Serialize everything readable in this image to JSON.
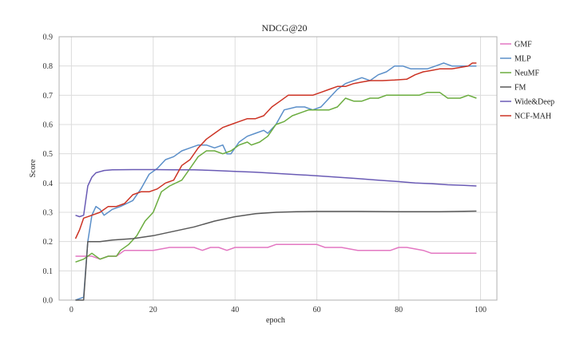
{
  "chart_data": {
    "type": "line",
    "title": "NDCG@20",
    "xlabel": "epoch",
    "ylabel": "Score",
    "xlim": [
      -3,
      104
    ],
    "ylim": [
      0.0,
      0.9
    ],
    "xticks": [
      0,
      20,
      40,
      60,
      80,
      100
    ],
    "yticks": [
      0.0,
      0.1,
      0.2,
      0.3,
      0.4,
      0.5,
      0.6,
      0.7,
      0.8,
      0.9
    ],
    "grid": true,
    "legend_position": "right",
    "series": [
      {
        "name": "GMF",
        "color": "#e377c2",
        "points": [
          [
            1,
            0.15
          ],
          [
            5,
            0.15
          ],
          [
            7,
            0.14
          ],
          [
            9,
            0.15
          ],
          [
            11,
            0.15
          ],
          [
            13,
            0.17
          ],
          [
            20,
            0.17
          ],
          [
            24,
            0.18
          ],
          [
            30,
            0.18
          ],
          [
            32,
            0.17
          ],
          [
            34,
            0.18
          ],
          [
            36,
            0.18
          ],
          [
            38,
            0.17
          ],
          [
            40,
            0.18
          ],
          [
            44,
            0.18
          ],
          [
            48,
            0.18
          ],
          [
            50,
            0.19
          ],
          [
            56,
            0.19
          ],
          [
            60,
            0.19
          ],
          [
            62,
            0.18
          ],
          [
            66,
            0.18
          ],
          [
            70,
            0.17
          ],
          [
            78,
            0.17
          ],
          [
            80,
            0.18
          ],
          [
            82,
            0.18
          ],
          [
            86,
            0.17
          ],
          [
            88,
            0.16
          ],
          [
            99,
            0.16
          ]
        ]
      },
      {
        "name": "MLP",
        "color": "#5b8fc9",
        "points": [
          [
            1,
            0.0
          ],
          [
            3,
            0.01
          ],
          [
            4,
            0.2
          ],
          [
            5,
            0.29
          ],
          [
            6,
            0.32
          ],
          [
            7,
            0.31
          ],
          [
            8,
            0.29
          ],
          [
            9,
            0.3
          ],
          [
            10,
            0.31
          ],
          [
            12,
            0.32
          ],
          [
            15,
            0.34
          ],
          [
            17,
            0.38
          ],
          [
            19,
            0.43
          ],
          [
            21,
            0.45
          ],
          [
            23,
            0.48
          ],
          [
            25,
            0.49
          ],
          [
            27,
            0.51
          ],
          [
            29,
            0.52
          ],
          [
            31,
            0.53
          ],
          [
            33,
            0.53
          ],
          [
            35,
            0.52
          ],
          [
            37,
            0.53
          ],
          [
            38,
            0.5
          ],
          [
            39,
            0.5
          ],
          [
            41,
            0.54
          ],
          [
            43,
            0.56
          ],
          [
            45,
            0.57
          ],
          [
            47,
            0.58
          ],
          [
            48,
            0.57
          ],
          [
            50,
            0.6
          ],
          [
            52,
            0.65
          ],
          [
            55,
            0.66
          ],
          [
            57,
            0.66
          ],
          [
            59,
            0.65
          ],
          [
            61,
            0.66
          ],
          [
            63,
            0.69
          ],
          [
            65,
            0.72
          ],
          [
            67,
            0.74
          ],
          [
            69,
            0.75
          ],
          [
            71,
            0.76
          ],
          [
            73,
            0.75
          ],
          [
            75,
            0.77
          ],
          [
            77,
            0.78
          ],
          [
            79,
            0.8
          ],
          [
            81,
            0.8
          ],
          [
            83,
            0.79
          ],
          [
            85,
            0.79
          ],
          [
            87,
            0.79
          ],
          [
            89,
            0.8
          ],
          [
            91,
            0.81
          ],
          [
            93,
            0.8
          ],
          [
            95,
            0.8
          ],
          [
            97,
            0.8
          ],
          [
            99,
            0.8
          ]
        ]
      },
      {
        "name": "NeuMF",
        "color": "#6aac3e",
        "points": [
          [
            1,
            0.13
          ],
          [
            3,
            0.14
          ],
          [
            5,
            0.16
          ],
          [
            7,
            0.14
          ],
          [
            9,
            0.15
          ],
          [
            11,
            0.15
          ],
          [
            12,
            0.17
          ],
          [
            14,
            0.19
          ],
          [
            16,
            0.22
          ],
          [
            18,
            0.27
          ],
          [
            20,
            0.3
          ],
          [
            22,
            0.37
          ],
          [
            24,
            0.39
          ],
          [
            27,
            0.41
          ],
          [
            29,
            0.45
          ],
          [
            31,
            0.49
          ],
          [
            33,
            0.51
          ],
          [
            35,
            0.51
          ],
          [
            37,
            0.5
          ],
          [
            39,
            0.51
          ],
          [
            41,
            0.53
          ],
          [
            43,
            0.54
          ],
          [
            44,
            0.53
          ],
          [
            46,
            0.54
          ],
          [
            48,
            0.56
          ],
          [
            50,
            0.6
          ],
          [
            52,
            0.61
          ],
          [
            54,
            0.63
          ],
          [
            56,
            0.64
          ],
          [
            58,
            0.65
          ],
          [
            60,
            0.65
          ],
          [
            63,
            0.65
          ],
          [
            65,
            0.66
          ],
          [
            67,
            0.69
          ],
          [
            69,
            0.68
          ],
          [
            71,
            0.68
          ],
          [
            73,
            0.69
          ],
          [
            75,
            0.69
          ],
          [
            77,
            0.7
          ],
          [
            81,
            0.7
          ],
          [
            85,
            0.7
          ],
          [
            87,
            0.71
          ],
          [
            90,
            0.71
          ],
          [
            92,
            0.69
          ],
          [
            95,
            0.69
          ],
          [
            97,
            0.7
          ],
          [
            99,
            0.69
          ]
        ]
      },
      {
        "name": "FM",
        "color": "#595959",
        "points": [
          [
            1,
            0.0
          ],
          [
            3,
            0.0
          ],
          [
            4,
            0.2
          ],
          [
            7,
            0.2
          ],
          [
            10,
            0.205
          ],
          [
            15,
            0.21
          ],
          [
            20,
            0.22
          ],
          [
            25,
            0.235
          ],
          [
            30,
            0.25
          ],
          [
            35,
            0.27
          ],
          [
            40,
            0.285
          ],
          [
            45,
            0.295
          ],
          [
            50,
            0.3
          ],
          [
            55,
            0.302
          ],
          [
            60,
            0.303
          ],
          [
            70,
            0.303
          ],
          [
            80,
            0.302
          ],
          [
            90,
            0.302
          ],
          [
            99,
            0.304
          ]
        ]
      },
      {
        "name": "Wide&Deep",
        "color": "#6a5bb5",
        "points": [
          [
            1,
            0.29
          ],
          [
            2,
            0.285
          ],
          [
            3,
            0.29
          ],
          [
            4,
            0.39
          ],
          [
            5,
            0.42
          ],
          [
            6,
            0.435
          ],
          [
            8,
            0.443
          ],
          [
            10,
            0.445
          ],
          [
            15,
            0.446
          ],
          [
            20,
            0.446
          ],
          [
            25,
            0.445
          ],
          [
            30,
            0.445
          ],
          [
            35,
            0.443
          ],
          [
            40,
            0.44
          ],
          [
            45,
            0.437
          ],
          [
            50,
            0.433
          ],
          [
            55,
            0.429
          ],
          [
            60,
            0.425
          ],
          [
            65,
            0.42
          ],
          [
            70,
            0.415
          ],
          [
            75,
            0.41
          ],
          [
            80,
            0.405
          ],
          [
            84,
            0.4
          ],
          [
            88,
            0.398
          ],
          [
            92,
            0.394
          ],
          [
            96,
            0.392
          ],
          [
            99,
            0.39
          ]
        ]
      },
      {
        "name": "NCF-MAH",
        "color": "#cc3324",
        "points": [
          [
            1,
            0.21
          ],
          [
            2,
            0.24
          ],
          [
            3,
            0.28
          ],
          [
            5,
            0.29
          ],
          [
            7,
            0.3
          ],
          [
            9,
            0.32
          ],
          [
            11,
            0.32
          ],
          [
            13,
            0.33
          ],
          [
            15,
            0.36
          ],
          [
            17,
            0.37
          ],
          [
            19,
            0.37
          ],
          [
            21,
            0.38
          ],
          [
            23,
            0.4
          ],
          [
            25,
            0.41
          ],
          [
            27,
            0.46
          ],
          [
            29,
            0.48
          ],
          [
            31,
            0.52
          ],
          [
            33,
            0.55
          ],
          [
            35,
            0.57
          ],
          [
            37,
            0.59
          ],
          [
            39,
            0.6
          ],
          [
            41,
            0.61
          ],
          [
            43,
            0.62
          ],
          [
            45,
            0.62
          ],
          [
            47,
            0.63
          ],
          [
            49,
            0.66
          ],
          [
            51,
            0.68
          ],
          [
            53,
            0.7
          ],
          [
            55,
            0.7
          ],
          [
            57,
            0.7
          ],
          [
            59,
            0.7
          ],
          [
            61,
            0.71
          ],
          [
            63,
            0.72
          ],
          [
            65,
            0.73
          ],
          [
            67,
            0.73
          ],
          [
            69,
            0.74
          ],
          [
            71,
            0.745
          ],
          [
            73,
            0.75
          ],
          [
            76,
            0.75
          ],
          [
            79,
            0.752
          ],
          [
            82,
            0.755
          ],
          [
            84,
            0.77
          ],
          [
            86,
            0.78
          ],
          [
            88,
            0.785
          ],
          [
            90,
            0.79
          ],
          [
            93,
            0.79
          ],
          [
            95,
            0.795
          ],
          [
            97,
            0.8
          ],
          [
            98,
            0.81
          ],
          [
            99,
            0.81
          ]
        ]
      }
    ]
  }
}
